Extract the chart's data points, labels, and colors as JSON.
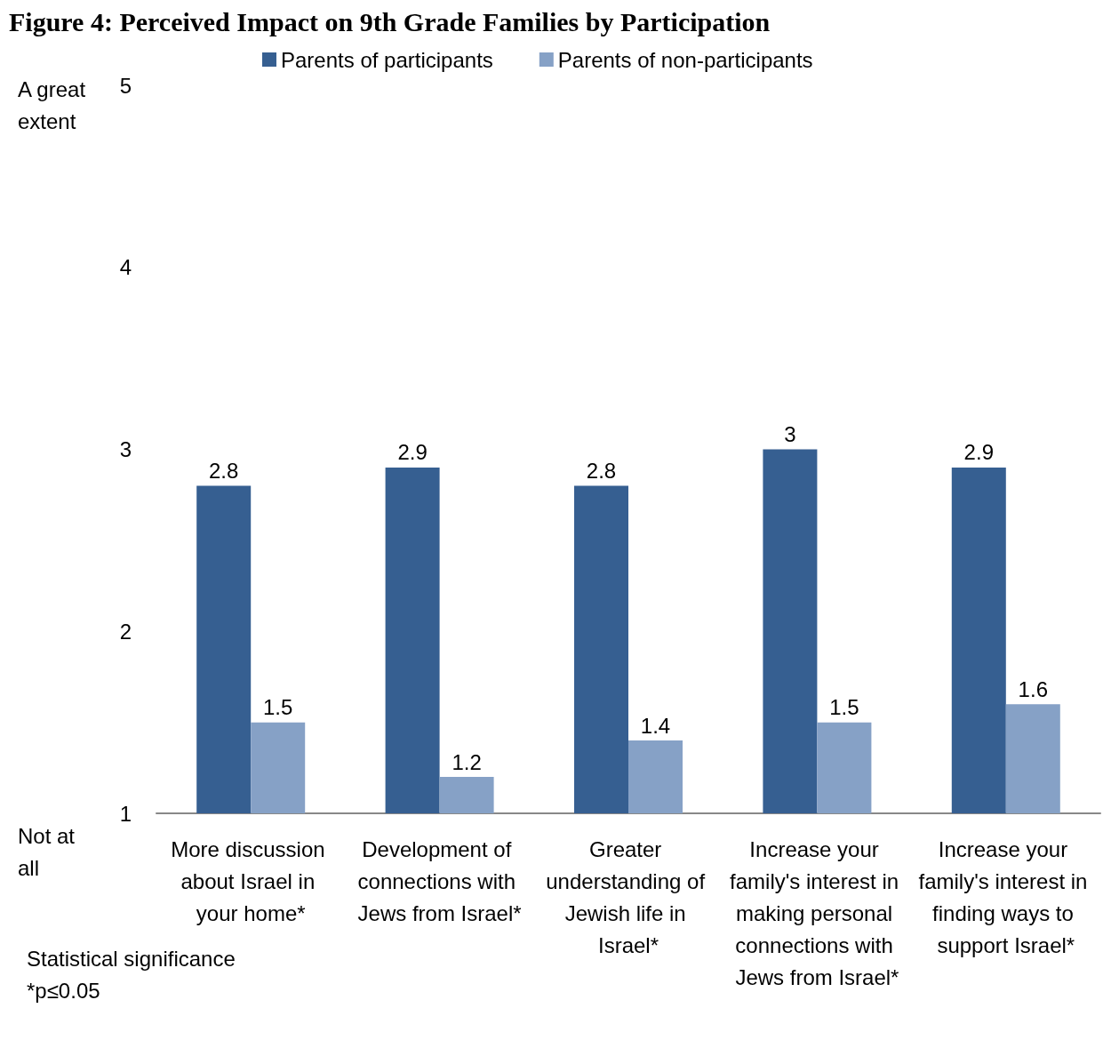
{
  "chart_data": {
    "type": "bar",
    "title": "Figure 4: Perceived Impact on 9th Grade Families by Participation",
    "categories": [
      "More discussion about Israel in your home*",
      "Development of connections with Jews from Israel*",
      "Greater understanding of Jewish life in Israel*",
      "Increase your family's interest in making personal connections with Jews from Israel*",
      "Increase your family's interest in finding ways to support Israel*"
    ],
    "series": [
      {
        "name": "Parents of participants",
        "color": "#365f91",
        "values": [
          2.8,
          2.9,
          2.8,
          3,
          2.9
        ]
      },
      {
        "name": "Parents of non-participants",
        "color": "#86a1c6",
        "values": [
          1.5,
          1.2,
          1.4,
          1.5,
          1.6
        ]
      }
    ],
    "ylim": [
      1,
      5
    ],
    "yticks": [
      1,
      2,
      3,
      4,
      5
    ],
    "grid": false,
    "legend": "top",
    "data_labels": true,
    "annotations": [
      "A great extent",
      "Not at all",
      "Statistical significance\n*p≤0.05"
    ]
  }
}
